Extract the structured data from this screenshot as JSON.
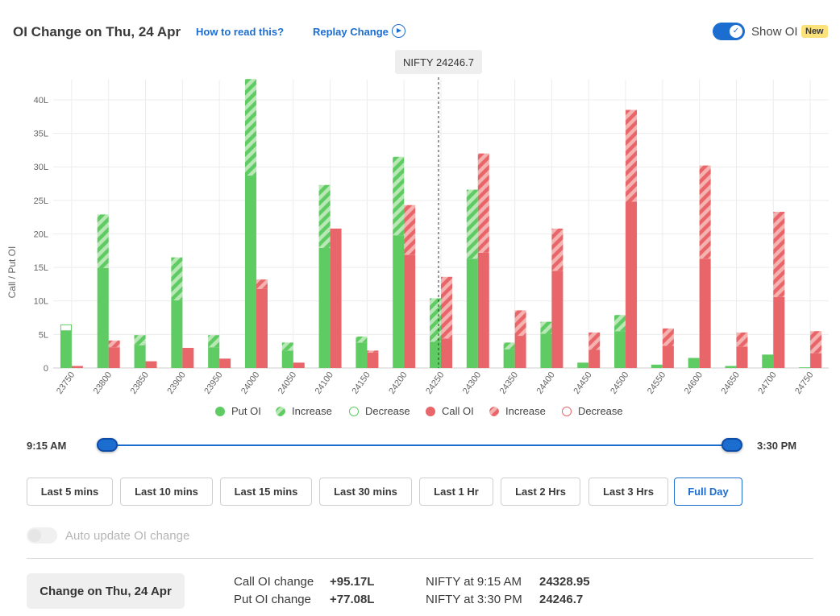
{
  "header": {
    "title": "OI Change on Thu, 24 Apr",
    "how_to_read": "How to read this?",
    "replay": "Replay Change",
    "show_oi": "Show OI",
    "badge": "New"
  },
  "colors": {
    "put": "#5ecb63",
    "put_light": "#b9e8b6",
    "call": "#e8666a",
    "call_light": "#f4b3b1",
    "accent": "#1c6dd0"
  },
  "chart_data": {
    "type": "bar",
    "ylabel": "Call / Put OI",
    "y_ticks": [
      "0",
      "5L",
      "10L",
      "15L",
      "20L",
      "25L",
      "30L",
      "35L",
      "40L"
    ],
    "ylim": [
      0,
      43
    ],
    "spot_label": "NIFTY 24246.7",
    "spot_value": 24246.7,
    "categories": [
      "23750",
      "23800",
      "23850",
      "23900",
      "23950",
      "24000",
      "24050",
      "24100",
      "24150",
      "24200",
      "24250",
      "24300",
      "24350",
      "24400",
      "24450",
      "24500",
      "24550",
      "24600",
      "24650",
      "24700",
      "24750"
    ],
    "series": [
      {
        "name": "Put OI",
        "values": [
          5.6,
          14.9,
          3.4,
          10.1,
          3.1,
          28.7,
          2.6,
          17.9,
          3.8,
          19.8,
          3.9,
          16.3,
          2.8,
          5.1,
          0.8,
          5.5,
          0.5,
          1.5,
          0.3,
          2.0,
          0.1
        ]
      },
      {
        "name": "Increase",
        "group": "put",
        "values": [
          0,
          8.0,
          1.5,
          6.4,
          1.8,
          14.4,
          1.2,
          9.4,
          0.9,
          11.7,
          6.5,
          10.3,
          1.0,
          1.8,
          0,
          2.4,
          0,
          0,
          0,
          0,
          0
        ]
      },
      {
        "name": "Decrease",
        "group": "put",
        "values": [
          0.9,
          0,
          0,
          0,
          0,
          0,
          0,
          0,
          0,
          0,
          0,
          0,
          0,
          0,
          0,
          0,
          0,
          0,
          0,
          0,
          0
        ]
      },
      {
        "name": "Call OI",
        "values": [
          0.3,
          3.1,
          1.0,
          3.0,
          1.4,
          11.8,
          0.8,
          20.8,
          2.3,
          16.9,
          4.4,
          17.2,
          4.8,
          14.5,
          2.7,
          24.8,
          3.3,
          16.3,
          3.2,
          10.6,
          2.2
        ]
      },
      {
        "name": "Increase",
        "group": "call",
        "values": [
          0,
          1.0,
          0,
          0,
          0,
          1.4,
          0,
          0,
          0.3,
          7.4,
          9.2,
          14.8,
          3.8,
          6.3,
          2.6,
          13.7,
          2.6,
          13.9,
          2.1,
          12.7,
          3.3
        ]
      },
      {
        "name": "Decrease",
        "group": "call",
        "values": [
          0,
          0,
          0,
          0,
          0,
          0,
          0,
          0,
          0,
          0,
          0,
          0,
          0,
          0,
          0,
          0,
          0,
          0,
          0,
          0,
          0
        ]
      }
    ],
    "legend": [
      "Put OI",
      "Increase",
      "Decrease",
      "Call OI",
      "Increase",
      "Decrease"
    ],
    "grid": true,
    "legend_position": "bottom"
  },
  "timeline": {
    "start": "9:15 AM",
    "end": "3:30 PM"
  },
  "ranges": [
    "Last 5 mins",
    "Last 10 mins",
    "Last 15 mins",
    "Last 30 mins",
    "Last 1 Hr",
    "Last 2 Hrs",
    "Last 3 Hrs",
    "Full Day"
  ],
  "active_range": "Full Day",
  "auto_update": "Auto update OI change",
  "summary": {
    "button": "Change on Thu, 24 Apr",
    "call_label": "Call OI change",
    "call_value": "+95.17L",
    "put_label": "Put OI change",
    "put_value": "+77.08L",
    "nifty_start_label": "NIFTY at 9:15 AM",
    "nifty_start_value": "24328.95",
    "nifty_end_label": "NIFTY at 3:30 PM",
    "nifty_end_value": "24246.7"
  }
}
